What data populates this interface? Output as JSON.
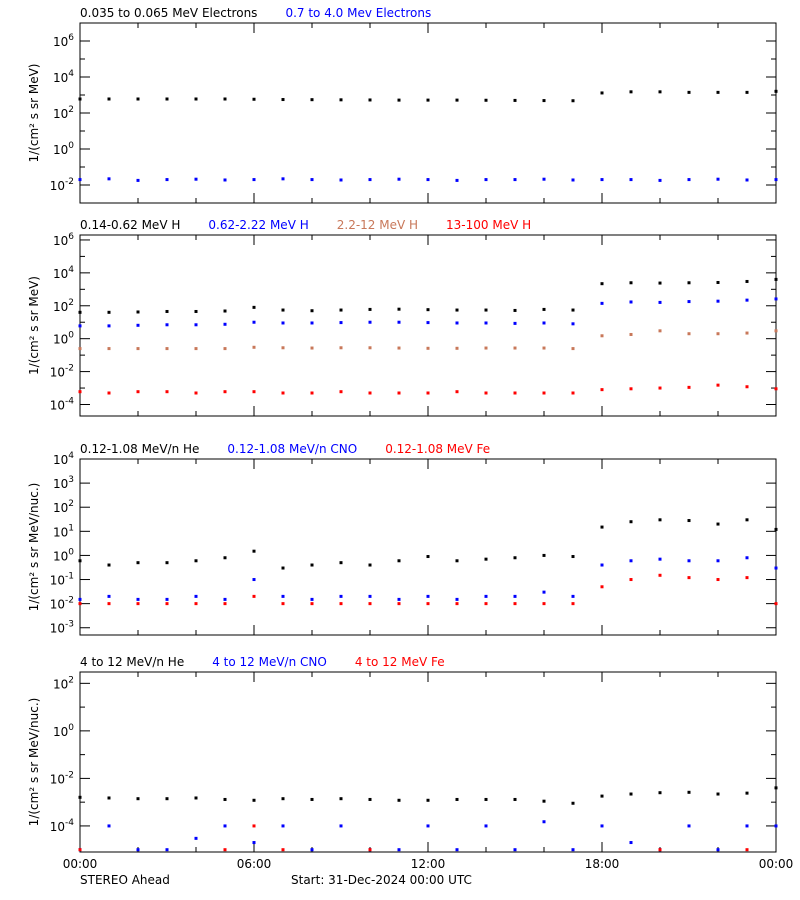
{
  "footer": {
    "left": "STEREO Ahead",
    "center": "Start: 31-Dec-2024 00:00 UTC"
  },
  "colors": {
    "black": "#000000",
    "blue": "#0000ff",
    "brown": "#c8785a",
    "red": "#ff0000"
  },
  "chart_data": [
    {
      "type": "scatter",
      "yscale": "log",
      "ylabel": "1/(cm² s sr MeV)",
      "ylim": [
        0.001,
        10000000
      ],
      "yticks_exp": [
        6,
        4,
        2,
        0,
        -2
      ],
      "minor_exp": [
        7,
        5,
        3,
        1,
        -1
      ],
      "x_hours": [
        0,
        1,
        2,
        3,
        4,
        5,
        6,
        7,
        8,
        9,
        10,
        11,
        12,
        13,
        14,
        15,
        16,
        17,
        18,
        19,
        20,
        21,
        22,
        23,
        24
      ],
      "series": [
        {
          "name": "0.035 to 0.065 MeV Electrons",
          "color": "#000000",
          "values": [
            600,
            600,
            600,
            600,
            600,
            600,
            580,
            560,
            550,
            540,
            530,
            520,
            520,
            520,
            510,
            500,
            490,
            480,
            1300,
            1500,
            1500,
            1400,
            1400,
            1400,
            1600
          ]
        },
        {
          "name": "0.7 to 4.0 Mev Electrons",
          "color": "#0000ff",
          "values": [
            0.02,
            0.022,
            0.018,
            0.02,
            0.021,
            0.019,
            0.02,
            0.022,
            0.02,
            0.019,
            0.02,
            0.021,
            0.02,
            0.018,
            0.02,
            0.02,
            0.021,
            0.019,
            0.02,
            0.02,
            0.018,
            0.02,
            0.021,
            0.019,
            0.02
          ]
        }
      ]
    },
    {
      "type": "scatter",
      "yscale": "log",
      "ylabel": "1/(cm² s sr MeV)",
      "ylim": [
        2e-05,
        2000000
      ],
      "yticks_exp": [
        6,
        4,
        2,
        0,
        -2,
        -4
      ],
      "minor_exp": [
        5,
        3,
        1,
        -1,
        -3
      ],
      "x_hours": [
        0,
        1,
        2,
        3,
        4,
        5,
        6,
        7,
        8,
        9,
        10,
        11,
        12,
        13,
        14,
        15,
        16,
        17,
        18,
        19,
        20,
        21,
        22,
        23,
        24
      ],
      "series": [
        {
          "name": "0.14-0.62 MeV H",
          "color": "#000000",
          "values": [
            40,
            40,
            42,
            45,
            45,
            48,
            80,
            55,
            50,
            55,
            60,
            62,
            58,
            55,
            55,
            52,
            60,
            55,
            2200,
            2500,
            2400,
            2500,
            2600,
            3000,
            4000
          ]
        },
        {
          "name": "0.62-2.22 MeV H",
          "color": "#0000ff",
          "values": [
            6,
            6,
            6.5,
            7,
            7,
            7.5,
            10,
            9,
            9,
            9.5,
            10,
            10,
            9.5,
            9,
            9,
            8.5,
            9,
            8,
            140,
            170,
            160,
            180,
            190,
            220,
            260
          ]
        },
        {
          "name": "2.2-12 MeV H",
          "color": "#c8785a",
          "values": [
            0.25,
            0.25,
            0.25,
            0.25,
            0.25,
            0.25,
            0.3,
            0.28,
            0.27,
            0.28,
            0.28,
            0.27,
            0.26,
            0.26,
            0.27,
            0.27,
            0.27,
            0.25,
            1.5,
            1.8,
            3,
            2,
            2,
            2.2,
            3
          ]
        },
        {
          "name": "13-100 MeV H",
          "color": "#ff0000",
          "values": [
            0.0006,
            0.0005,
            0.0006,
            0.0006,
            0.0005,
            0.0006,
            0.0006,
            0.0005,
            0.0005,
            0.0006,
            0.0005,
            0.0005,
            0.0005,
            0.0006,
            0.0005,
            0.0005,
            0.0005,
            0.0005,
            0.0008,
            0.0009,
            0.001,
            0.0011,
            0.0015,
            0.0012,
            0.0009
          ]
        }
      ]
    },
    {
      "type": "scatter",
      "yscale": "log",
      "ylabel": "1/(cm² s sr MeV/nuc.)",
      "ylim": [
        0.0005,
        10000
      ],
      "yticks_exp": [
        4,
        3,
        2,
        1,
        0,
        -1,
        -2,
        -3
      ],
      "minor_exp": [],
      "x_hours": [
        0,
        1,
        2,
        3,
        4,
        5,
        6,
        7,
        8,
        9,
        10,
        11,
        12,
        13,
        14,
        15,
        16,
        17,
        18,
        19,
        20,
        21,
        22,
        23,
        24
      ],
      "series": [
        {
          "name": "0.12-1.08 MeV/n He",
          "color": "#000000",
          "values": [
            0.6,
            0.4,
            0.5,
            0.5,
            0.6,
            0.8,
            1.5,
            0.3,
            0.4,
            0.5,
            0.4,
            0.6,
            0.9,
            0.6,
            0.7,
            0.8,
            1.0,
            0.9,
            15,
            25,
            30,
            28,
            20,
            30,
            12
          ]
        },
        {
          "name": "0.12-1.08 MeV/n CNO",
          "color": "#0000ff",
          "values": [
            0.015,
            0.02,
            0.015,
            0.015,
            0.02,
            0.015,
            0.1,
            0.02,
            0.015,
            0.02,
            0.02,
            0.015,
            0.02,
            0.015,
            0.02,
            0.02,
            0.03,
            0.02,
            0.4,
            0.6,
            0.7,
            0.6,
            0.6,
            0.8,
            0.3
          ]
        },
        {
          "name": "0.12-1.08 MeV Fe",
          "color": "#ff0000",
          "values": [
            0.01,
            0.01,
            0.01,
            0.01,
            0.01,
            0.01,
            0.02,
            0.01,
            0.01,
            0.01,
            0.01,
            0.01,
            0.01,
            0.01,
            0.01,
            0.01,
            0.01,
            0.01,
            0.05,
            0.1,
            0.15,
            0.12,
            0.1,
            0.12,
            0.01
          ]
        }
      ]
    },
    {
      "type": "scatter",
      "yscale": "log",
      "ylabel": "1/(cm² s sr MeV/nuc.)",
      "ylim": [
        8e-06,
        300
      ],
      "yticks_exp": [
        2,
        0,
        -2,
        -4
      ],
      "minor_exp": [
        1,
        -1,
        -3
      ],
      "x_hours": [
        0,
        1,
        2,
        3,
        4,
        5,
        6,
        7,
        8,
        9,
        10,
        11,
        12,
        13,
        14,
        15,
        16,
        17,
        18,
        19,
        20,
        21,
        22,
        23,
        24
      ],
      "series": [
        {
          "name": "4 to 12 MeV/n He",
          "color": "#000000",
          "values": [
            0.0016,
            0.0015,
            0.0014,
            0.0014,
            0.0015,
            0.0013,
            0.0012,
            0.0014,
            0.0013,
            0.0014,
            0.0013,
            0.0012,
            0.0012,
            0.0013,
            0.0013,
            0.0013,
            0.0011,
            0.0009,
            0.0018,
            0.0022,
            0.0025,
            0.0026,
            0.0022,
            0.0024,
            0.004
          ]
        },
        {
          "name": "4 to 12 MeV/n CNO",
          "color": "#0000ff",
          "values": [
            1e-05,
            0.0001,
            1e-05,
            1e-05,
            3e-05,
            0.0001,
            2e-05,
            0.0001,
            1e-05,
            0.0001,
            1e-05,
            1e-05,
            0.0001,
            1e-05,
            0.0001,
            1e-05,
            0.00015,
            1e-05,
            0.0001,
            2e-05,
            1e-05,
            0.0001,
            1e-05,
            0.0001,
            0.0001
          ]
        },
        {
          "name": "4 to 12 MeV Fe",
          "color": "#ff0000",
          "values": [
            1e-05,
            null,
            null,
            null,
            null,
            1e-05,
            0.0001,
            1e-05,
            null,
            null,
            1e-05,
            null,
            null,
            null,
            null,
            null,
            null,
            null,
            null,
            null,
            1e-05,
            null,
            null,
            1e-05,
            null
          ]
        }
      ]
    }
  ],
  "xaxis": {
    "tick_labels": [
      "00:00",
      "06:00",
      "12:00",
      "18:00",
      "00:00"
    ],
    "range_hours": [
      0,
      24
    ]
  }
}
